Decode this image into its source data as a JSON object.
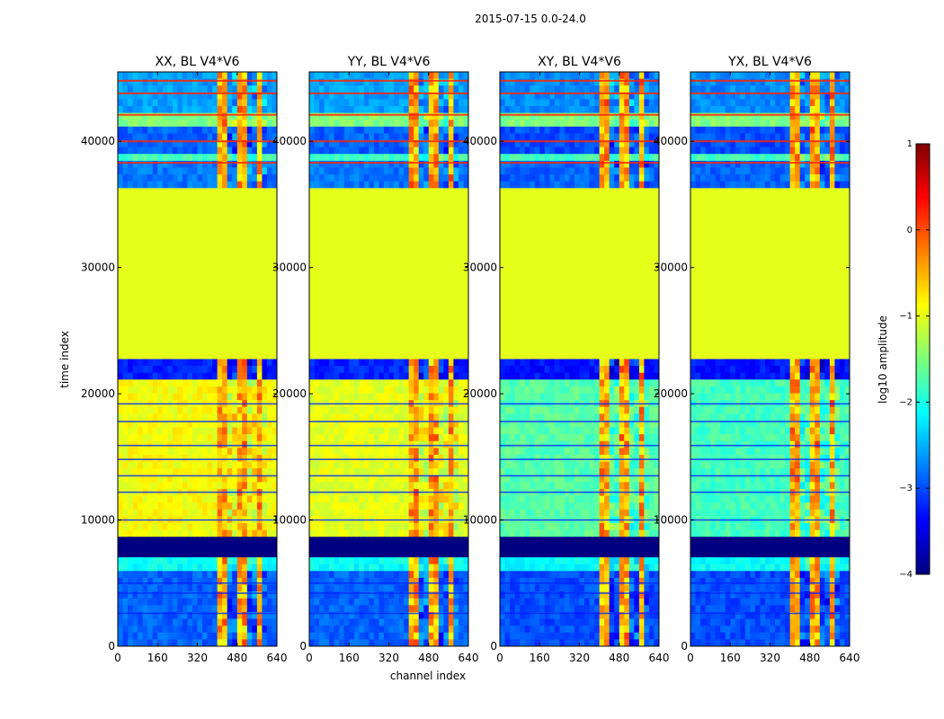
{
  "figure": {
    "suptitle": "2015-07-15 0.0-24.0",
    "xlabel": "channel index",
    "ylabel": "time index"
  },
  "chart_data": {
    "type": "heatmap",
    "panels": [
      {
        "title": "XX, BL V4*V6",
        "pol": "XX"
      },
      {
        "title": "YY, BL V4*V6",
        "pol": "YY"
      },
      {
        "title": "XY, BL V4*V6",
        "pol": "XY"
      },
      {
        "title": "YX, BL V4*V6",
        "pol": "YX"
      }
    ],
    "x_range": [
      0,
      640
    ],
    "y_range": [
      0,
      45500
    ],
    "x_ticks": [
      0,
      160,
      320,
      480,
      640
    ],
    "x_tick_labels": [
      "0",
      "160",
      "320",
      "480",
      "640"
    ],
    "y_ticks": [
      0,
      10000,
      20000,
      30000,
      40000
    ],
    "y_tick_labels": [
      "0",
      "10000",
      "20000",
      "30000",
      "40000"
    ],
    "rfi_channel_bands": [
      [
        405,
        440
      ],
      [
        480,
        510
      ],
      [
        555,
        585
      ]
    ],
    "flagged_time_range": [
      23000,
      36500
    ],
    "colorbar": {
      "label": "log10 amplitude",
      "range": [
        -4,
        1
      ],
      "ticks": [
        1,
        0,
        -1,
        -2,
        -3,
        -4
      ],
      "tick_labels": [
        "1",
        "0",
        "−1",
        "−2",
        "−3",
        "−4"
      ],
      "colormap": "jet"
    },
    "time_blocks": [
      {
        "t0": 0,
        "t1": 6200,
        "level": -2.9,
        "pattern": "quiet"
      },
      {
        "t0": 6200,
        "t1": 6800,
        "level": -2.1,
        "pattern": "band"
      },
      {
        "t0": 6800,
        "t1": 8500,
        "level": -4.0,
        "pattern": "dark"
      },
      {
        "t0": 8500,
        "t1": 21300,
        "level": -1.2,
        "pattern": "active"
      },
      {
        "t0": 21300,
        "t1": 23000,
        "level": -3.2,
        "pattern": "quiet"
      },
      {
        "t0": 23000,
        "t1": 36500,
        "level": -1.0,
        "pattern": "flagged"
      },
      {
        "t0": 36500,
        "t1": 38200,
        "level": -2.8,
        "pattern": "quiet"
      },
      {
        "t0": 38200,
        "t1": 39200,
        "level": -1.8,
        "pattern": "band"
      },
      {
        "t0": 39200,
        "t1": 41200,
        "level": -2.9,
        "pattern": "quiet"
      },
      {
        "t0": 41200,
        "t1": 42200,
        "level": -1.5,
        "pattern": "band"
      },
      {
        "t0": 42200,
        "t1": 45500,
        "level": -2.6,
        "pattern": "quiet"
      }
    ],
    "panel_active_level": {
      "XX": -0.9,
      "YY": -1.0,
      "XY": -1.7,
      "YX": -1.8
    }
  }
}
